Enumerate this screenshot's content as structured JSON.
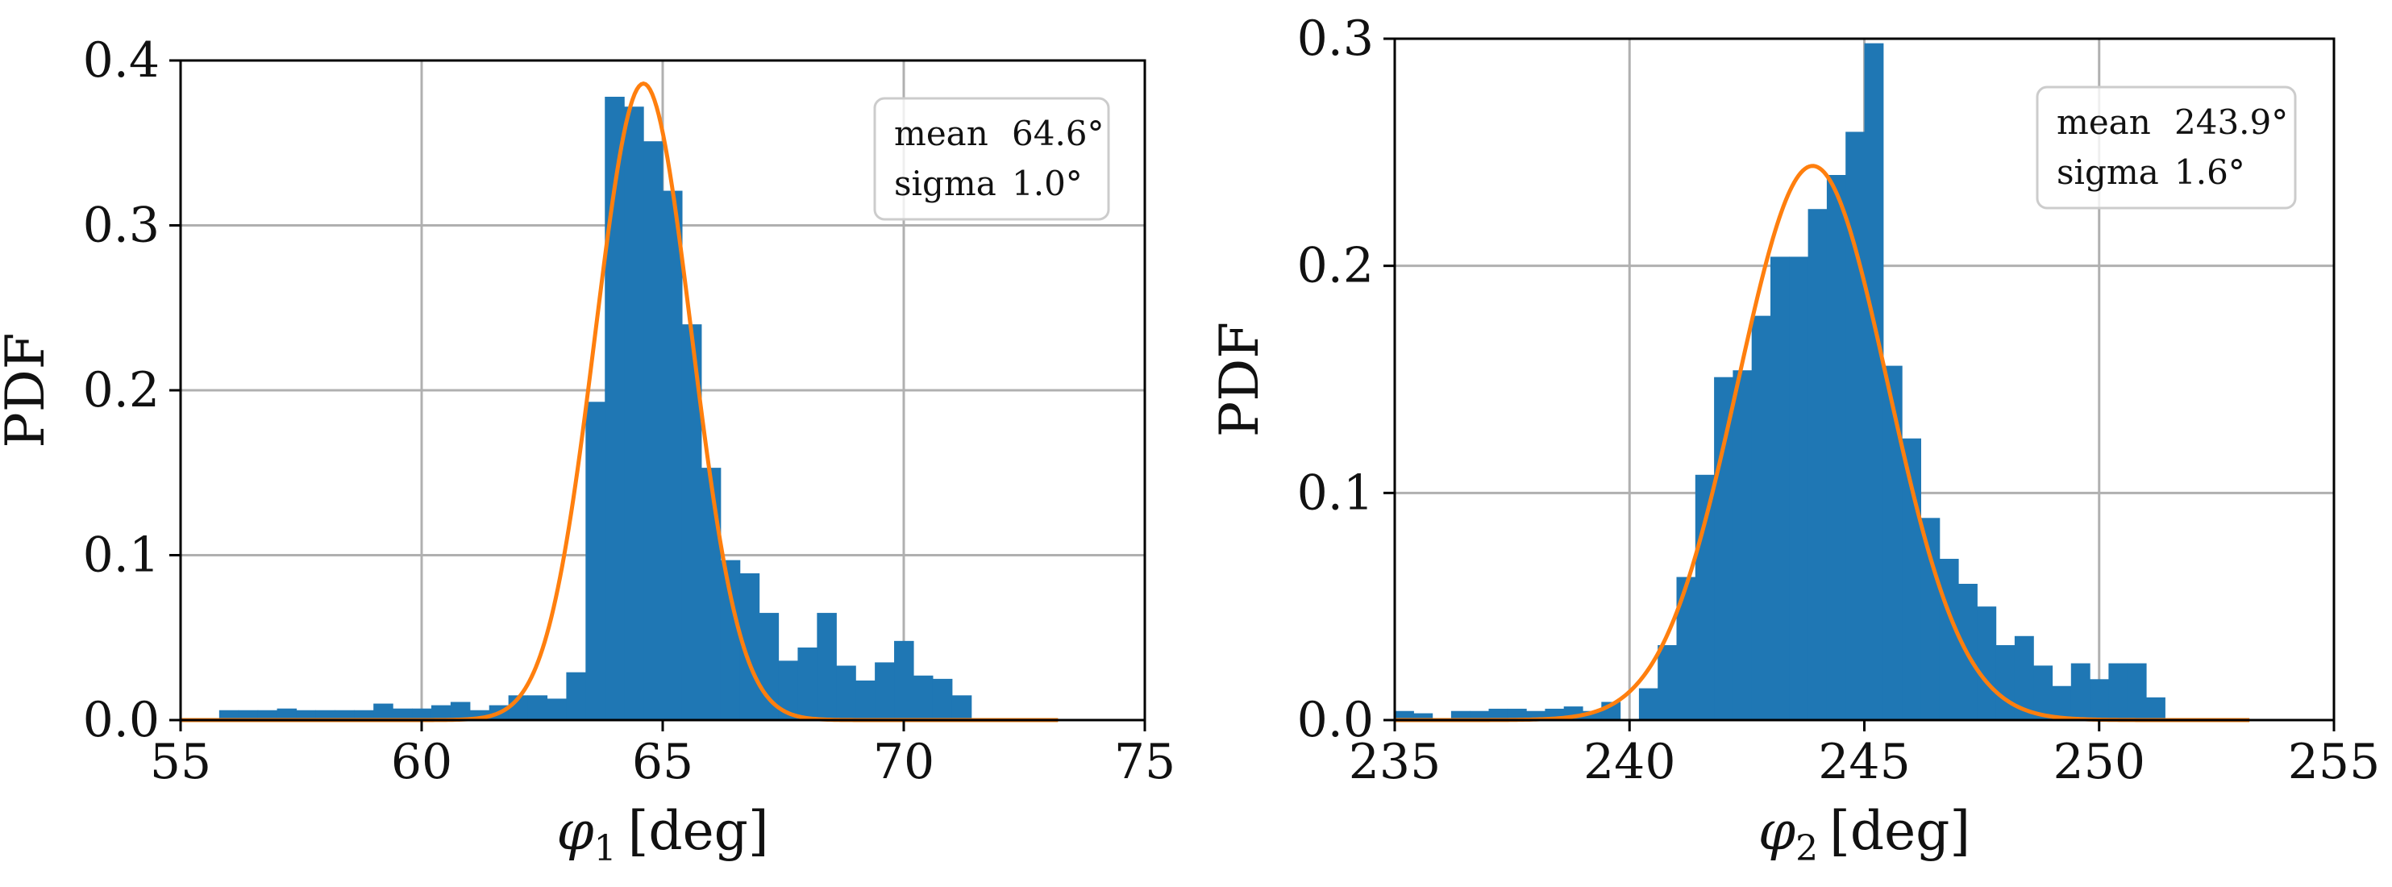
{
  "chart_data": [
    {
      "type": "bar",
      "overlay": "line",
      "xlabel": "φ1 [deg]",
      "xlabel_main": "φ",
      "xlabel_sub": "1",
      "xlabel_unit": "[deg]",
      "ylabel": "PDF",
      "xlim": [
        55,
        75
      ],
      "ylim": [
        0,
        0.4
      ],
      "xticks": [
        55,
        60,
        65,
        70,
        75
      ],
      "yticks": [
        0.0,
        0.1,
        0.2,
        0.3,
        0.4
      ],
      "xtick_labels": [
        "55",
        "60",
        "65",
        "70",
        "75"
      ],
      "ytick_labels": [
        "0.0",
        "0.1",
        "0.2",
        "0.3",
        "0.4"
      ],
      "grid": true,
      "legend_position": "top-right",
      "stats": [
        {
          "label": "mean",
          "value": "64.6°"
        },
        {
          "label": "sigma",
          "value": "1.0°"
        }
      ],
      "bar_color": "#1f77b4",
      "line_color": "#ff7f0e",
      "bin_width": 0.4,
      "histogram": {
        "bin_edges_start": 55.8,
        "densities": [
          0.006,
          0.006,
          0.006,
          0.007,
          0.006,
          0.006,
          0.006,
          0.006,
          0.01,
          0.007,
          0.007,
          0.009,
          0.011,
          0.006,
          0.009,
          0.015,
          0.015,
          0.013,
          0.029,
          0.193,
          0.378,
          0.372,
          0.351,
          0.321,
          0.24,
          0.153,
          0.097,
          0.089,
          0.065,
          0.036,
          0.044,
          0.065,
          0.033,
          0.024,
          0.035,
          0.048,
          0.027,
          0.025,
          0.015
        ]
      },
      "gaussian": {
        "mean": 64.6,
        "sigma": 1.0,
        "amplitude": 0.386,
        "x_range": [
          55,
          73.2
        ]
      }
    },
    {
      "type": "bar",
      "overlay": "line",
      "xlabel": "φ2 [deg]",
      "xlabel_main": "φ",
      "xlabel_sub": "2",
      "xlabel_unit": "[deg]",
      "ylabel": "PDF",
      "xlim": [
        235,
        255
      ],
      "ylim": [
        0,
        0.3
      ],
      "xticks": [
        235,
        240,
        245,
        250,
        255
      ],
      "yticks": [
        0.0,
        0.1,
        0.2,
        0.3
      ],
      "xtick_labels": [
        "235",
        "240",
        "245",
        "250",
        "255"
      ],
      "ytick_labels": [
        "0.0",
        "0.1",
        "0.2",
        "0.3"
      ],
      "grid": true,
      "legend_position": "top-right",
      "stats": [
        {
          "label": "mean",
          "value": "243.9°"
        },
        {
          "label": "sigma",
          "value": "1.6°"
        }
      ],
      "bar_color": "#1f77b4",
      "line_color": "#ff7f0e",
      "bin_width": 0.4,
      "histogram": {
        "bin_edges_start": 235.0,
        "densities": [
          0.004,
          0.003,
          0.0,
          0.004,
          0.004,
          0.005,
          0.005,
          0.004,
          0.005,
          0.006,
          0.004,
          0.008,
          0.0,
          0.014,
          0.033,
          0.063,
          0.108,
          0.151,
          0.154,
          0.178,
          0.204,
          0.204,
          0.225,
          0.24,
          0.259,
          0.298,
          0.156,
          0.124,
          0.089,
          0.071,
          0.06,
          0.05,
          0.033,
          0.037,
          0.024,
          0.015,
          0.025,
          0.018,
          0.025,
          0.025,
          0.01
        ]
      },
      "gaussian": {
        "mean": 243.9,
        "sigma": 1.6,
        "amplitude": 0.244,
        "x_range": [
          235,
          253.2
        ]
      }
    }
  ]
}
